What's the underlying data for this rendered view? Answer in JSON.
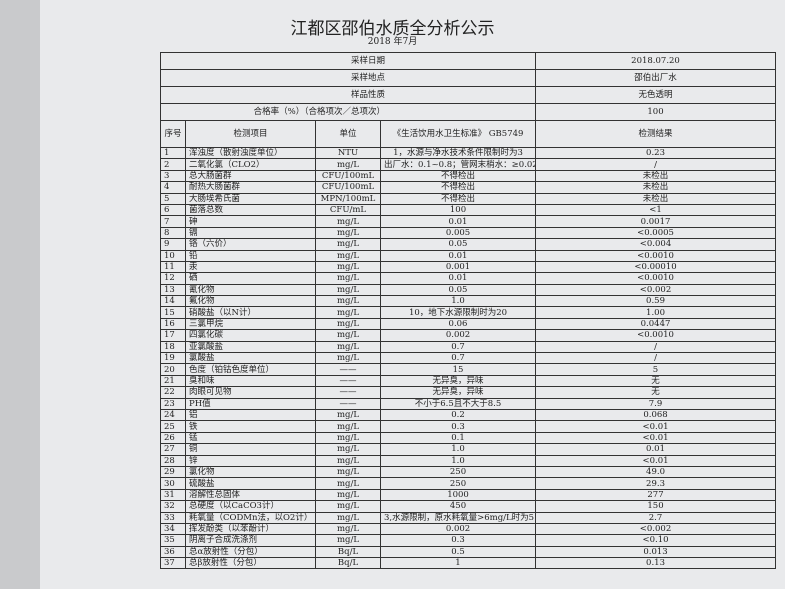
{
  "header": {
    "title": "江都区邵伯水质全分析公示",
    "subtitle": "2018 年7月"
  },
  "table": {
    "info": [
      [
        "采样日期",
        "2018.07.20"
      ],
      [
        "采样地点",
        "邵伯出厂水"
      ],
      [
        "样品性质",
        "无色透明"
      ],
      [
        "合格率（%）（合格项次／总项次）",
        "100"
      ]
    ],
    "columns": [
      "序号",
      "检测项目",
      "单位",
      "《生活饮用水卫生标准》 GB5749",
      "检测结果"
    ],
    "rows": [
      [
        "1",
        "浑浊度（散射浊度单位）",
        "NTU",
        "1，水源与净水技术条件限制时为3",
        "0.23"
      ],
      [
        "2",
        "二氧化氯（CLO2）",
        "mg/L",
        "出厂水：0.1~0.8；管网末梢水：≥0.02",
        "/"
      ],
      [
        "3",
        "总大肠菌群",
        "CFU/100mL",
        "不得检出",
        "未检出"
      ],
      [
        "4",
        "耐热大肠菌群",
        "CFU/100mL",
        "不得检出",
        "未检出"
      ],
      [
        "5",
        "大肠埃希氏菌",
        "MPN/100mL",
        "不得检出",
        "未检出"
      ],
      [
        "6",
        "菌落总数",
        "CFU/mL",
        "100",
        "<1"
      ],
      [
        "7",
        "砷",
        "mg/L",
        "0.01",
        "0.0017"
      ],
      [
        "8",
        "镉",
        "mg/L",
        "0.005",
        "<0.0005"
      ],
      [
        "9",
        "铬（六价）",
        "mg/L",
        "0.05",
        "<0.004"
      ],
      [
        "10",
        "铅",
        "mg/L",
        "0.01",
        "<0.0010"
      ],
      [
        "11",
        "汞",
        "mg/L",
        "0.001",
        "<0.00010"
      ],
      [
        "12",
        "硒",
        "mg/L",
        "0.01",
        "<0.0010"
      ],
      [
        "13",
        "氰化物",
        "mg/L",
        "0.05",
        "<0.002"
      ],
      [
        "14",
        "氟化物",
        "mg/L",
        "1.0",
        "0.59"
      ],
      [
        "15",
        "硝酸盐（以N计）",
        "mg/L",
        "10，地下水源限制时为20",
        "1.00"
      ],
      [
        "16",
        "三氯甲烷",
        "mg/L",
        "0.06",
        "0.0447"
      ],
      [
        "17",
        "四氯化碳",
        "mg/L",
        "0.002",
        "<0.0010"
      ],
      [
        "18",
        "亚氯酸盐",
        "mg/L",
        "0.7",
        "/"
      ],
      [
        "19",
        "氯酸盐",
        "mg/L",
        "0.7",
        "/"
      ],
      [
        "20",
        "色度（铂钴色度单位）",
        "——",
        "15",
        "5"
      ],
      [
        "21",
        "臭和味",
        "——",
        "无异臭，异味",
        "无"
      ],
      [
        "22",
        "肉眼可见物",
        "——",
        "无异臭，异味",
        "无"
      ],
      [
        "23",
        "PH值",
        "——",
        "不小于6.5且不大于8.5",
        "7.9"
      ],
      [
        "24",
        "铝",
        "mg/L",
        "0.2",
        "0.068"
      ],
      [
        "25",
        "铁",
        "mg/L",
        "0.3",
        "<0.01"
      ],
      [
        "26",
        "锰",
        "mg/L",
        "0.1",
        "<0.01"
      ],
      [
        "27",
        "铜",
        "mg/L",
        "1.0",
        "0.01"
      ],
      [
        "28",
        "锌",
        "mg/L",
        "1.0",
        "<0.01"
      ],
      [
        "29",
        "氯化物",
        "mg/L",
        "250",
        "49.0"
      ],
      [
        "30",
        "硫酸盐",
        "mg/L",
        "250",
        "29.3"
      ],
      [
        "31",
        "溶解性总固体",
        "mg/L",
        "1000",
        "277"
      ],
      [
        "32",
        "总硬度（以CaCO3计）",
        "mg/L",
        "450",
        "150"
      ],
      [
        "33",
        "耗氧量（CODMn法，以O2计）",
        "mg/L",
        "3,水源限制，原水耗氧量>6mg/L时为5",
        "2.7"
      ],
      [
        "34",
        "挥发酚类（以苯酚计）",
        "mg/L",
        "0.002",
        "<0.002"
      ],
      [
        "35",
        "阴离子合成洗涤剂",
        "mg/L",
        "0.3",
        "<0.10"
      ],
      [
        "36",
        "总α放射性（分包）",
        "Bq/L",
        "0.5",
        "0.013"
      ],
      [
        "37",
        "总β放射性（分包）",
        "Bq/L",
        "1",
        "0.13"
      ]
    ]
  }
}
